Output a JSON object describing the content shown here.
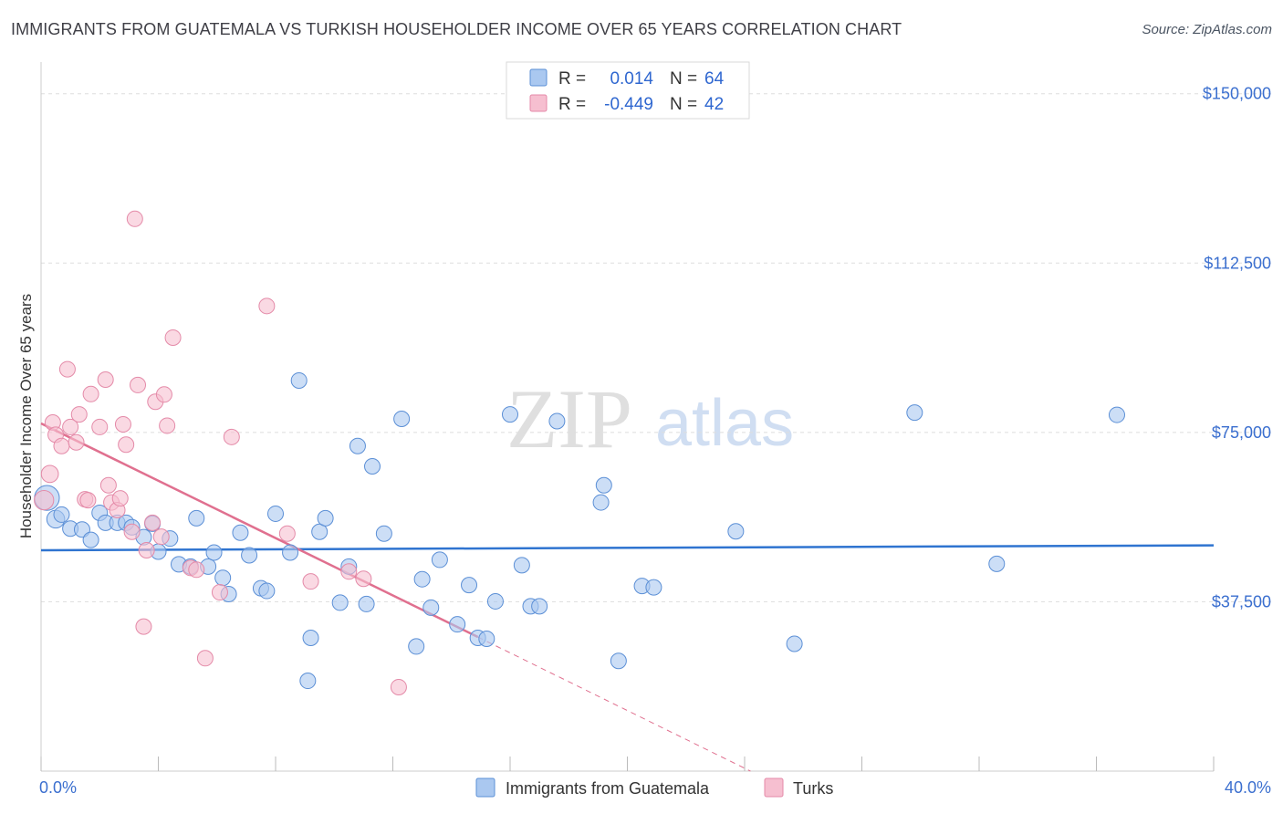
{
  "title": "IMMIGRANTS FROM GUATEMALA VS TURKISH HOUSEHOLDER INCOME OVER 65 YEARS CORRELATION CHART",
  "source": "Source: ZipAtlas.com",
  "watermark": {
    "zip": "ZIP",
    "atlas": "atlas"
  },
  "legend_stats": [
    {
      "r_label": "R =",
      "r_value": "0.014",
      "n_label": "N =",
      "n_value": "64"
    },
    {
      "r_label": "R =",
      "r_value": "-0.449",
      "n_label": "N =",
      "n_value": "42"
    }
  ],
  "colors": {
    "blue_fill": "#aac8f0",
    "blue_stroke": "#5b8fd6",
    "blue_line": "#2f74d0",
    "pink_fill": "#f6bfd0",
    "pink_stroke": "#e48aa8",
    "pink_line": "#e0708f",
    "axis_text": "#3b6fcf",
    "grid": "#dddddd"
  },
  "chart_data": {
    "type": "scatter",
    "title": "IMMIGRANTS FROM GUATEMALA VS TURKISH HOUSEHOLDER INCOME OVER 65 YEARS CORRELATION CHART",
    "xlabel": "",
    "ylabel": "Householder Income Over 65 years",
    "xlim": [
      0,
      40
    ],
    "ylim": [
      0,
      155000
    ],
    "x_tick_labels": [
      "0.0%",
      "40.0%"
    ],
    "y_ticks": [
      37500,
      75000,
      112500,
      150000
    ],
    "y_tick_labels": [
      "$37,500",
      "$75,000",
      "$112,500",
      "$150,000"
    ],
    "legend_position": "bottom-center",
    "series": [
      {
        "name": "Immigrants from Guatemala",
        "color": "blue",
        "R": 0.014,
        "N": 64,
        "trend": {
          "x": [
            0,
            40
          ],
          "y": [
            48900,
            50000
          ]
        },
        "points": [
          {
            "x": 0.2,
            "y": 60500,
            "s": 1.6
          },
          {
            "x": 0.5,
            "y": 55800,
            "s": 1.15
          },
          {
            "x": 0.7,
            "y": 56800
          },
          {
            "x": 1.0,
            "y": 53700
          },
          {
            "x": 1.4,
            "y": 53500
          },
          {
            "x": 1.7,
            "y": 51200
          },
          {
            "x": 2.0,
            "y": 57200
          },
          {
            "x": 2.2,
            "y": 55000
          },
          {
            "x": 2.6,
            "y": 55000
          },
          {
            "x": 2.9,
            "y": 55000
          },
          {
            "x": 3.1,
            "y": 54000
          },
          {
            "x": 3.5,
            "y": 51800
          },
          {
            "x": 3.8,
            "y": 54800
          },
          {
            "x": 4.0,
            "y": 48600
          },
          {
            "x": 4.4,
            "y": 51500
          },
          {
            "x": 4.7,
            "y": 45800
          },
          {
            "x": 5.1,
            "y": 45300
          },
          {
            "x": 5.3,
            "y": 56000
          },
          {
            "x": 5.7,
            "y": 45300
          },
          {
            "x": 5.9,
            "y": 48400
          },
          {
            "x": 6.2,
            "y": 42800
          },
          {
            "x": 6.4,
            "y": 39200
          },
          {
            "x": 6.8,
            "y": 52800
          },
          {
            "x": 7.1,
            "y": 47800
          },
          {
            "x": 7.5,
            "y": 40500
          },
          {
            "x": 7.7,
            "y": 39900
          },
          {
            "x": 8.0,
            "y": 57000
          },
          {
            "x": 8.5,
            "y": 48400
          },
          {
            "x": 8.8,
            "y": 86500
          },
          {
            "x": 9.2,
            "y": 29500
          },
          {
            "x": 9.5,
            "y": 53000
          },
          {
            "x": 9.7,
            "y": 56000
          },
          {
            "x": 9.1,
            "y": 20000
          },
          {
            "x": 10.2,
            "y": 37300
          },
          {
            "x": 10.5,
            "y": 45300
          },
          {
            "x": 10.8,
            "y": 72000
          },
          {
            "x": 11.1,
            "y": 37000
          },
          {
            "x": 11.3,
            "y": 67500
          },
          {
            "x": 11.7,
            "y": 52600
          },
          {
            "x": 12.3,
            "y": 78000
          },
          {
            "x": 12.8,
            "y": 27600
          },
          {
            "x": 13.0,
            "y": 42500
          },
          {
            "x": 13.3,
            "y": 36200
          },
          {
            "x": 13.6,
            "y": 46800
          },
          {
            "x": 14.2,
            "y": 32500
          },
          {
            "x": 14.6,
            "y": 41200
          },
          {
            "x": 14.9,
            "y": 29500
          },
          {
            "x": 15.2,
            "y": 29300
          },
          {
            "x": 15.5,
            "y": 37600
          },
          {
            "x": 16.0,
            "y": 79000
          },
          {
            "x": 16.4,
            "y": 45600
          },
          {
            "x": 16.7,
            "y": 36500
          },
          {
            "x": 17.0,
            "y": 36500
          },
          {
            "x": 17.6,
            "y": 77500
          },
          {
            "x": 19.1,
            "y": 59500
          },
          {
            "x": 19.2,
            "y": 63300
          },
          {
            "x": 19.7,
            "y": 24400
          },
          {
            "x": 20.5,
            "y": 41000
          },
          {
            "x": 20.9,
            "y": 40700
          },
          {
            "x": 23.7,
            "y": 53100
          },
          {
            "x": 25.7,
            "y": 28200
          },
          {
            "x": 29.8,
            "y": 79400
          },
          {
            "x": 32.6,
            "y": 45900
          },
          {
            "x": 36.7,
            "y": 78900
          }
        ]
      },
      {
        "name": "Turks",
        "color": "pink",
        "R": -0.449,
        "N": 42,
        "trend": {
          "x": [
            0,
            14.9
          ],
          "y": [
            77000,
            29700
          ]
        },
        "trend_dashed": {
          "x": [
            14.9,
            24.2
          ],
          "y": [
            29700,
            0
          ]
        },
        "points": [
          {
            "x": 0.1,
            "y": 60000,
            "s": 1.25
          },
          {
            "x": 0.3,
            "y": 65800,
            "s": 1.1
          },
          {
            "x": 0.4,
            "y": 77200
          },
          {
            "x": 0.5,
            "y": 74500
          },
          {
            "x": 0.7,
            "y": 72000
          },
          {
            "x": 0.9,
            "y": 89000
          },
          {
            "x": 1.0,
            "y": 76200
          },
          {
            "x": 1.2,
            "y": 72800
          },
          {
            "x": 1.3,
            "y": 79000
          },
          {
            "x": 1.5,
            "y": 60200
          },
          {
            "x": 1.6,
            "y": 60000
          },
          {
            "x": 1.7,
            "y": 83500
          },
          {
            "x": 2.0,
            "y": 76200
          },
          {
            "x": 2.2,
            "y": 86700
          },
          {
            "x": 2.3,
            "y": 63300
          },
          {
            "x": 2.4,
            "y": 59500
          },
          {
            "x": 2.6,
            "y": 57800
          },
          {
            "x": 2.7,
            "y": 60400
          },
          {
            "x": 2.8,
            "y": 76800
          },
          {
            "x": 2.9,
            "y": 72300
          },
          {
            "x": 3.1,
            "y": 53000
          },
          {
            "x": 3.2,
            "y": 122300
          },
          {
            "x": 3.3,
            "y": 85500
          },
          {
            "x": 3.5,
            "y": 32000
          },
          {
            "x": 3.6,
            "y": 48900
          },
          {
            "x": 3.8,
            "y": 55000
          },
          {
            "x": 3.9,
            "y": 81800
          },
          {
            "x": 4.1,
            "y": 51900
          },
          {
            "x": 4.2,
            "y": 83400
          },
          {
            "x": 4.3,
            "y": 76500
          },
          {
            "x": 4.5,
            "y": 96000
          },
          {
            "x": 5.1,
            "y": 45000
          },
          {
            "x": 5.3,
            "y": 44600
          },
          {
            "x": 5.6,
            "y": 25000
          },
          {
            "x": 6.1,
            "y": 39600
          },
          {
            "x": 6.5,
            "y": 74000
          },
          {
            "x": 7.7,
            "y": 103000
          },
          {
            "x": 8.4,
            "y": 52600
          },
          {
            "x": 9.2,
            "y": 42000
          },
          {
            "x": 10.5,
            "y": 44200
          },
          {
            "x": 11.0,
            "y": 42600
          },
          {
            "x": 12.2,
            "y": 18600
          }
        ]
      }
    ]
  }
}
